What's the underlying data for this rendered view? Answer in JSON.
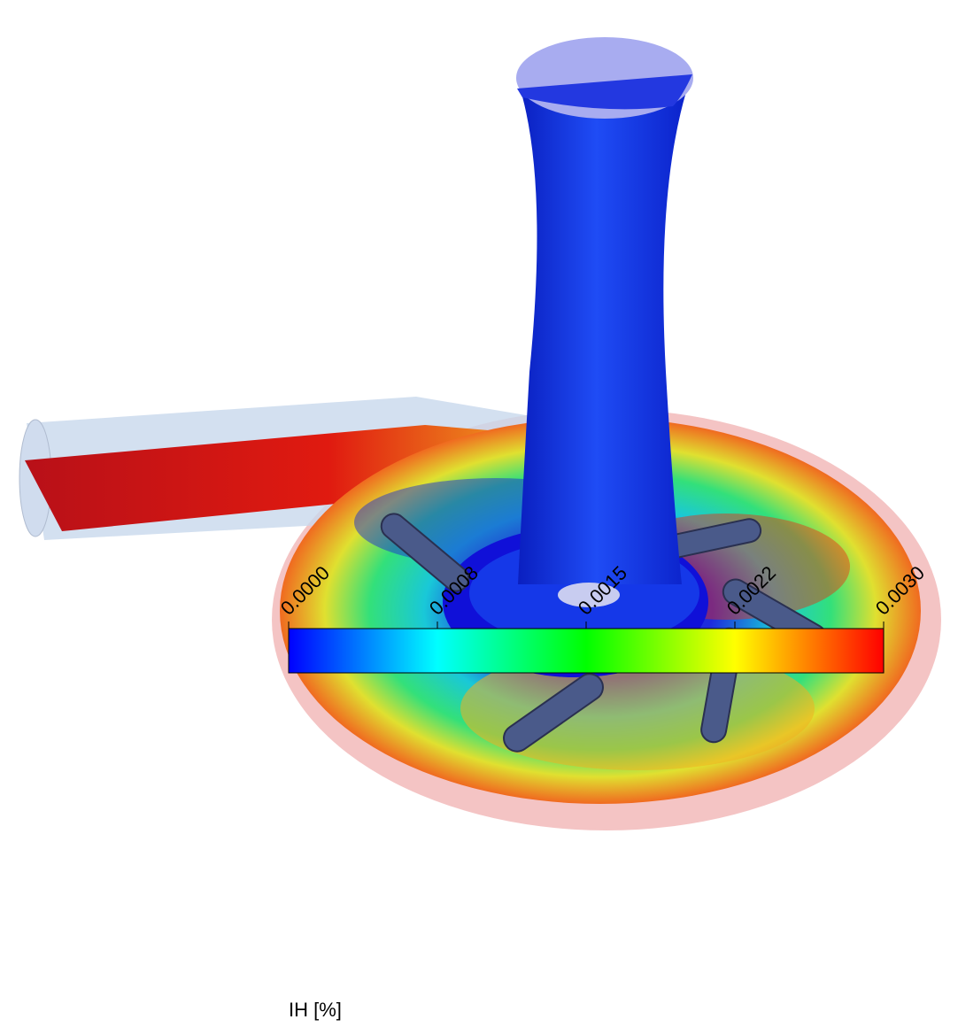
{
  "colorbar": {
    "title": "IH [%]",
    "lim": [
      0,
      0.003
    ],
    "ticks": [
      {
        "value": 0,
        "label": "0.0000"
      },
      {
        "value": 0.00075,
        "label": "0.0008"
      },
      {
        "value": 0.0015,
        "label": "0.0015"
      },
      {
        "value": 0.00225,
        "label": "0.0022"
      },
      {
        "value": 0.003,
        "label": "0.0030"
      }
    ],
    "colors": [
      "#0000ff",
      "#00ffff",
      "#00ff00",
      "#ffff00",
      "#ff0000"
    ]
  }
}
